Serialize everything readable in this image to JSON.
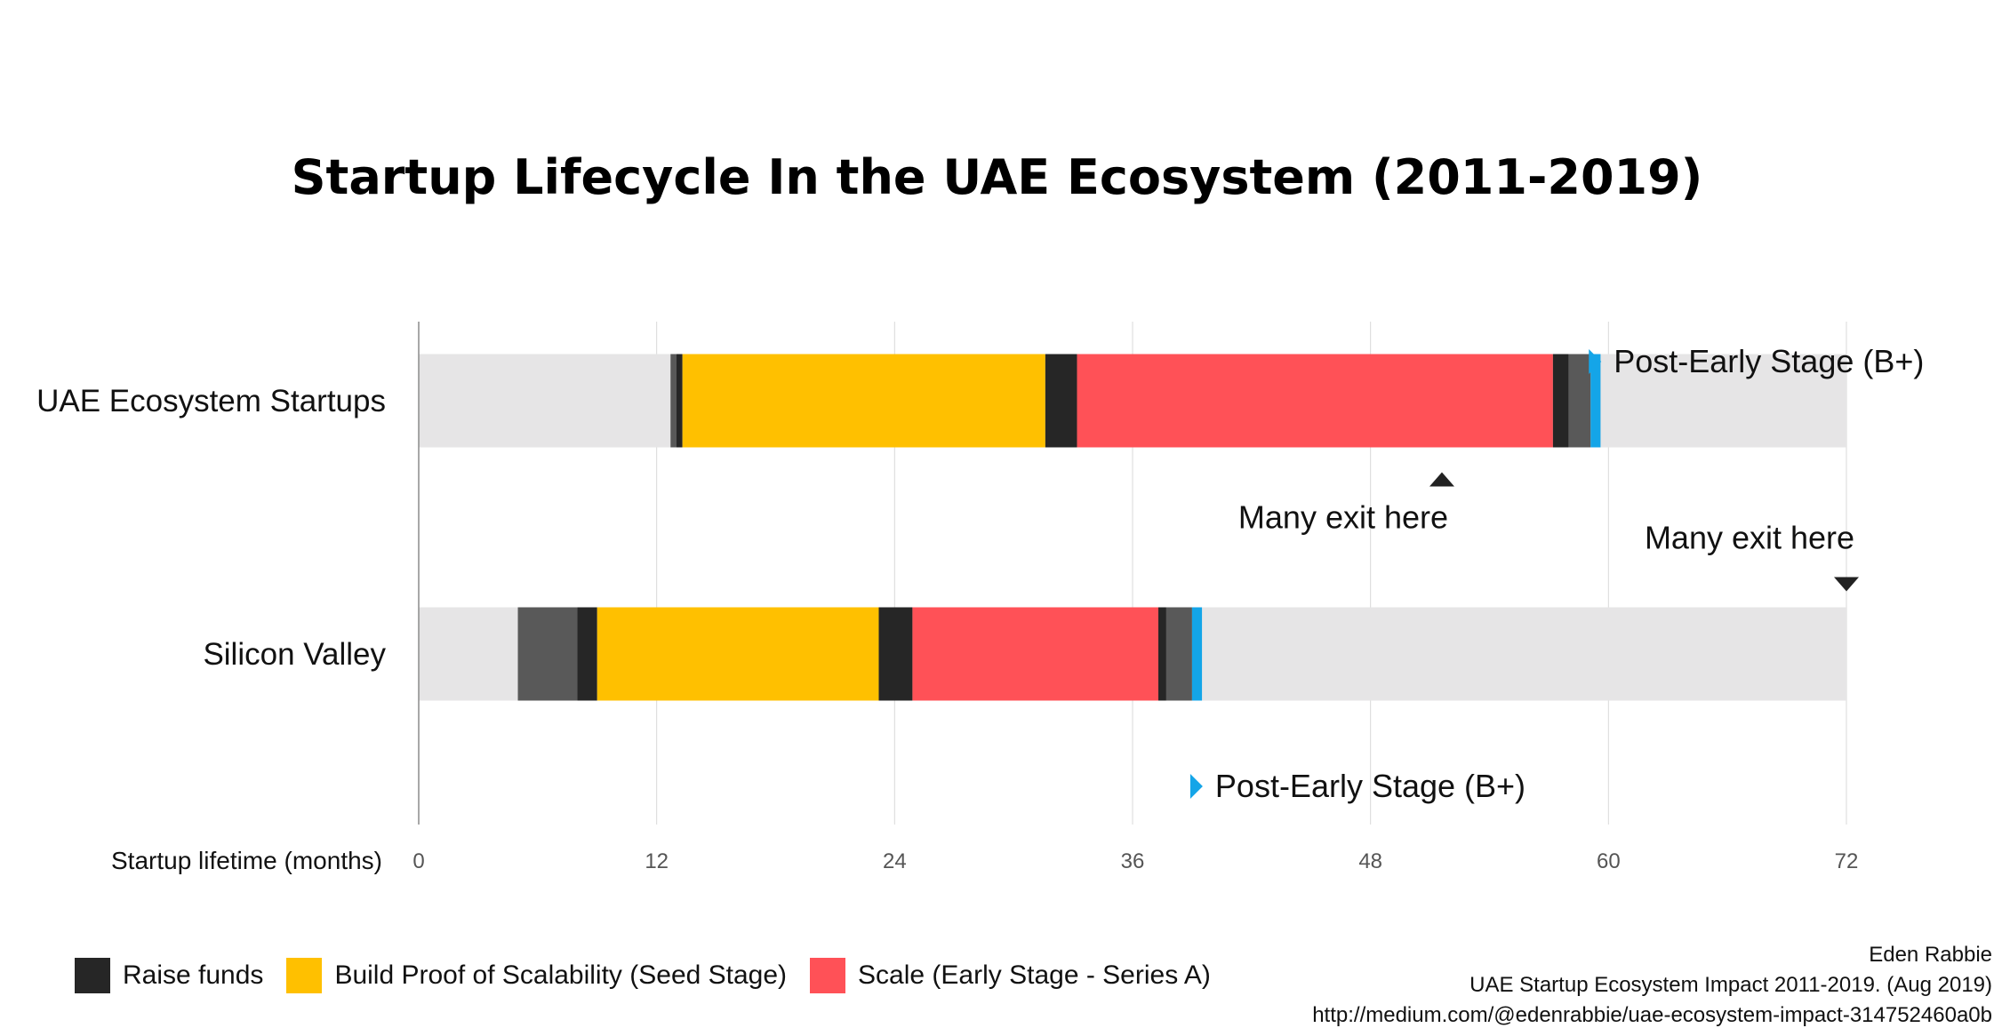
{
  "chart_data": {
    "type": "bar",
    "subtype": "horizontal-stacked-timeline",
    "title": "Startup Lifecycle In the UAE Ecosystem (2011-2019)",
    "xlabel": "Startup lifetime (months)",
    "xlim": [
      0,
      72
    ],
    "xticks": [
      "0",
      "12",
      "24",
      "36",
      "48",
      "60",
      "72"
    ],
    "grid": true,
    "legend_position": "bottom-left",
    "categories": [
      "UAE Ecosystem Startups",
      "Silicon Valley"
    ],
    "background_range": [
      0,
      72
    ],
    "rows": [
      {
        "name": "UAE Ecosystem Startups",
        "segments": [
          {
            "stage": "pre",
            "start": 12.7,
            "end": 13.0
          },
          {
            "stage": "raise",
            "start": 13.0,
            "end": 13.3
          },
          {
            "stage": "seed",
            "start": 13.3,
            "end": 31.6
          },
          {
            "stage": "raise",
            "start": 31.6,
            "end": 33.2
          },
          {
            "stage": "early",
            "start": 33.2,
            "end": 57.2
          },
          {
            "stage": "raise",
            "start": 57.2,
            "end": 58.0
          },
          {
            "stage": "pre",
            "start": 58.0,
            "end": 59.1
          },
          {
            "stage": "post",
            "start": 59.1,
            "end": 59.6
          }
        ]
      },
      {
        "name": "Silicon Valley",
        "segments": [
          {
            "stage": "pre",
            "start": 5.0,
            "end": 8.0
          },
          {
            "stage": "raise",
            "start": 8.0,
            "end": 9.0
          },
          {
            "stage": "seed",
            "start": 9.0,
            "end": 23.2
          },
          {
            "stage": "raise",
            "start": 23.2,
            "end": 24.9
          },
          {
            "stage": "early",
            "start": 24.9,
            "end": 37.3
          },
          {
            "stage": "raise",
            "start": 37.3,
            "end": 37.7
          },
          {
            "stage": "pre",
            "start": 37.7,
            "end": 39.0
          },
          {
            "stage": "post",
            "start": 39.0,
            "end": 39.5
          }
        ]
      }
    ],
    "annotations": [
      {
        "text": "Post-Early Stage (B+)",
        "row": 0,
        "x": 59.1,
        "placement": "above",
        "marker": "triangle-right",
        "color": "#14A5E8"
      },
      {
        "text": "Many exit here",
        "row": 0,
        "x": 51.6,
        "placement": "below",
        "marker": "triangle-up",
        "color": "#222222"
      },
      {
        "text": "Many exit here",
        "row": 1,
        "x": 72,
        "placement": "above",
        "marker": "triangle-down",
        "color": "#222222"
      },
      {
        "text": "Post-Early Stage (B+)",
        "row": 1,
        "x": 39.0,
        "placement": "below",
        "marker": "triangle-right",
        "color": "#14A5E8"
      }
    ],
    "legend": [
      {
        "key": "raise",
        "label": "Raise funds"
      },
      {
        "key": "seed",
        "label": "Build Proof of Scalability (Seed Stage)"
      },
      {
        "key": "early",
        "label": "Scale (Early Stage - Series A)"
      }
    ]
  },
  "colors": {
    "raise": "#262626",
    "seed": "#FFC000",
    "early": "#FF5157",
    "pre": "#595959",
    "post": "#14A5E8",
    "track": "#E6E5E6",
    "grid": "#D9D9D9",
    "axis": "#8C8C8C",
    "marker": "#222222"
  },
  "source": {
    "author": "Eden Rabbie",
    "publication": "UAE Startup Ecosystem Impact 2011-2019. (Aug 2019)",
    "url": "http://medium.com/@edenrabbie/uae-ecosystem-impact-314752460a0b"
  }
}
